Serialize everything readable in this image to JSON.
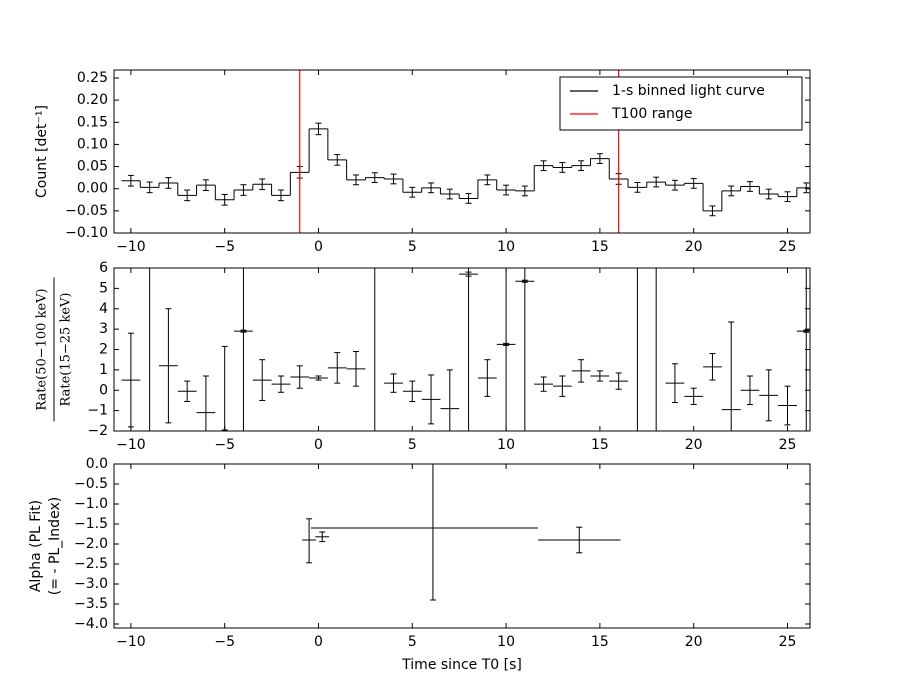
{
  "chart_data": [
    {
      "type": "step",
      "ylabel": "Count [det⁻¹]",
      "xlim": [
        -10.9,
        26.2
      ],
      "xticks": [
        {
          "value": -10,
          "label": "−10"
        },
        {
          "value": -5,
          "label": "−5"
        },
        0,
        5,
        10,
        15,
        20,
        25
      ],
      "ylim": [
        -0.1,
        0.268
      ],
      "yticks": [
        {
          "value": 0.25,
          "label": "0.25"
        },
        {
          "value": 0.2,
          "label": "0.20"
        },
        {
          "value": 0.15,
          "label": "0.15"
        },
        {
          "value": 0.1,
          "label": "0.10"
        },
        {
          "value": 0.05,
          "label": "0.05"
        },
        {
          "value": 0,
          "label": "0.00"
        },
        {
          "value": -0.05,
          "label": "−0.05"
        },
        {
          "value": -0.1,
          "label": "−0.10"
        }
      ],
      "legend": "upper right",
      "series": [
        {
          "name": "1-s binned light curve",
          "color": "#000000",
          "x": [
            -10,
            -9,
            -8,
            -7,
            -6,
            -5,
            -4,
            -3,
            -2,
            -1,
            0,
            1,
            2,
            3,
            4,
            5,
            6,
            7,
            8,
            9,
            10,
            11,
            12,
            13,
            14,
            15,
            16,
            17,
            18,
            19,
            20,
            21,
            22,
            23,
            24,
            25,
            26
          ],
          "values": [
            0.018,
            0.003,
            0.013,
            -0.015,
            0.008,
            -0.025,
            -0.003,
            0.01,
            -0.015,
            0.037,
            0.135,
            0.065,
            0.02,
            0.025,
            0.022,
            -0.008,
            0.002,
            -0.012,
            -0.022,
            0.02,
            -0.003,
            -0.005,
            0.052,
            0.048,
            0.052,
            0.068,
            0.022,
            0.003,
            0.015,
            0.008,
            0.012,
            -0.05,
            -0.005,
            0.005,
            -0.012,
            -0.018,
            0.002
          ],
          "errors": [
            0.012,
            0.012,
            0.012,
            0.012,
            0.012,
            0.012,
            0.012,
            0.012,
            0.012,
            0.013,
            0.013,
            0.012,
            0.011,
            0.011,
            0.011,
            0.011,
            0.011,
            0.011,
            0.011,
            0.011,
            0.011,
            0.011,
            0.011,
            0.011,
            0.011,
            0.011,
            0.012,
            0.011,
            0.011,
            0.011,
            0.011,
            0.011,
            0.011,
            0.011,
            0.011,
            0.011,
            0.011
          ]
        },
        {
          "name": "T100 range",
          "color": "#ff0000",
          "x": [
            -1,
            16
          ]
        }
      ]
    },
    {
      "type": "errorbar",
      "ylabel": {
        "numerator": "Rate(50−100 keV)",
        "denominator": "Rate(15−25 keV)"
      },
      "xlim": [
        -10.9,
        26.2
      ],
      "xticks": [
        {
          "value": -10,
          "label": "−10"
        },
        {
          "value": -5,
          "label": "−5"
        },
        0,
        5,
        10,
        15,
        20,
        25
      ],
      "ylim": [
        -2,
        6
      ],
      "yticks": [
        6,
        5,
        4,
        3,
        2,
        1,
        0,
        {
          "value": -1,
          "label": "−1"
        },
        {
          "value": -2,
          "label": "−2"
        }
      ],
      "color": "#000000",
      "x": [
        -10,
        -8,
        -7,
        -6,
        -5,
        -4,
        -3,
        -2,
        -1,
        0,
        1,
        2,
        4,
        5,
        6,
        7,
        8,
        9,
        10,
        11,
        12,
        13,
        14,
        15,
        16,
        19,
        20,
        21,
        22,
        23,
        24,
        25,
        26
      ],
      "xerr": [
        0.5,
        0.5,
        0.5,
        0.5,
        0,
        0.5,
        0.5,
        0.5,
        0.5,
        0.5,
        0.5,
        0.5,
        0.5,
        0.5,
        0.5,
        0.5,
        0.5,
        0.5,
        0.5,
        0.5,
        0.5,
        0.5,
        0.5,
        0.5,
        0.5,
        0.5,
        0.5,
        0.5,
        0.5,
        0.5,
        0.5,
        0.5,
        0.5
      ],
      "values": [
        0.5,
        1.2,
        -0.05,
        -1.1,
        0.1,
        2.9,
        0.5,
        0.3,
        0.65,
        0.6,
        1.1,
        1.05,
        0.35,
        -0.05,
        -0.45,
        -0.9,
        5.7,
        0.6,
        2.25,
        5.35,
        0.3,
        0.2,
        0.95,
        0.7,
        0.45,
        0.35,
        -0.3,
        1.15,
        -0.95,
        0.0,
        -0.25,
        -0.75,
        2.9
      ],
      "yerr": [
        2.3,
        2.8,
        0.5,
        1.8,
        2.05,
        0.05,
        1.0,
        0.4,
        0.55,
        0.1,
        0.75,
        0.85,
        0.45,
        0.5,
        1.2,
        1.9,
        0.1,
        0.9,
        0.05,
        0.05,
        0.35,
        0.5,
        0.55,
        0.25,
        0.4,
        0.95,
        0.4,
        0.65,
        4.3,
        0.7,
        1.25,
        0.95,
        0.05
      ],
      "vlines": [
        -9,
        -4,
        3,
        8,
        10,
        11,
        17,
        18,
        26
      ]
    },
    {
      "type": "errorbar",
      "ylabel": [
        "Alpha (PL Fit)",
        "(= - PL_Index)"
      ],
      "xlabel": "Time since T0 [s]",
      "xlim": [
        -10.9,
        26.2
      ],
      "xticks": [
        {
          "value": -10,
          "label": "−10"
        },
        {
          "value": -5,
          "label": "−5"
        },
        0,
        5,
        10,
        15,
        20,
        25
      ],
      "ylim": [
        -4.1,
        0
      ],
      "yticks": [
        {
          "value": 0,
          "label": "0.0"
        },
        {
          "value": -0.5,
          "label": "−0.5"
        },
        {
          "value": -1,
          "label": "−1.0"
        },
        {
          "value": -1.5,
          "label": "−1.5"
        },
        {
          "value": -2,
          "label": "−2.0"
        },
        {
          "value": -2.5,
          "label": "−2.5"
        },
        {
          "value": -3,
          "label": "−3.0"
        },
        {
          "value": -3.5,
          "label": "−3.5"
        },
        {
          "value": -4,
          "label": "−4.0"
        }
      ],
      "color": "#000000",
      "x": [
        -0.5,
        0.2,
        6.1,
        13.9
      ],
      "xerr_low": [
        0.37,
        0.37,
        6.5,
        2.2
      ],
      "xerr_high": [
        0.37,
        0.37,
        5.6,
        2.2
      ],
      "values": [
        -1.9,
        -1.82,
        -1.6,
        -1.9
      ],
      "yerr_low": [
        0.57,
        0.12,
        1.8,
        0.32
      ],
      "yerr_high": [
        0.53,
        0.12,
        1.6,
        0.32
      ]
    }
  ]
}
